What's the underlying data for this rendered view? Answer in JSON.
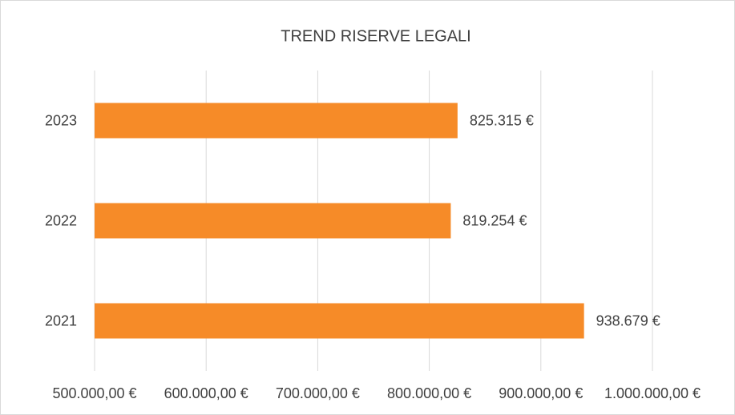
{
  "chart_data": {
    "type": "bar",
    "orientation": "horizontal",
    "title": "TREND RISERVE LEGALI",
    "categories": [
      "2021",
      "2022",
      "2023"
    ],
    "values": [
      938679,
      819254,
      825315
    ],
    "value_labels": [
      "938.679 €",
      "819.254 €",
      "825.315 €"
    ],
    "color": "#f68b28",
    "xlim": [
      500000,
      1000000
    ],
    "xticks": [
      {
        "value": 500000,
        "label": "500.000,00 €"
      },
      {
        "value": 600000,
        "label": "600.000,00 €"
      },
      {
        "value": 700000,
        "label": "700.000,00 €"
      },
      {
        "value": 800000,
        "label": "800.000,00 €"
      },
      {
        "value": 900000,
        "label": "900.000,00 €"
      },
      {
        "value": 1000000,
        "label": "1.000.000,00 €"
      }
    ],
    "grid": true
  }
}
